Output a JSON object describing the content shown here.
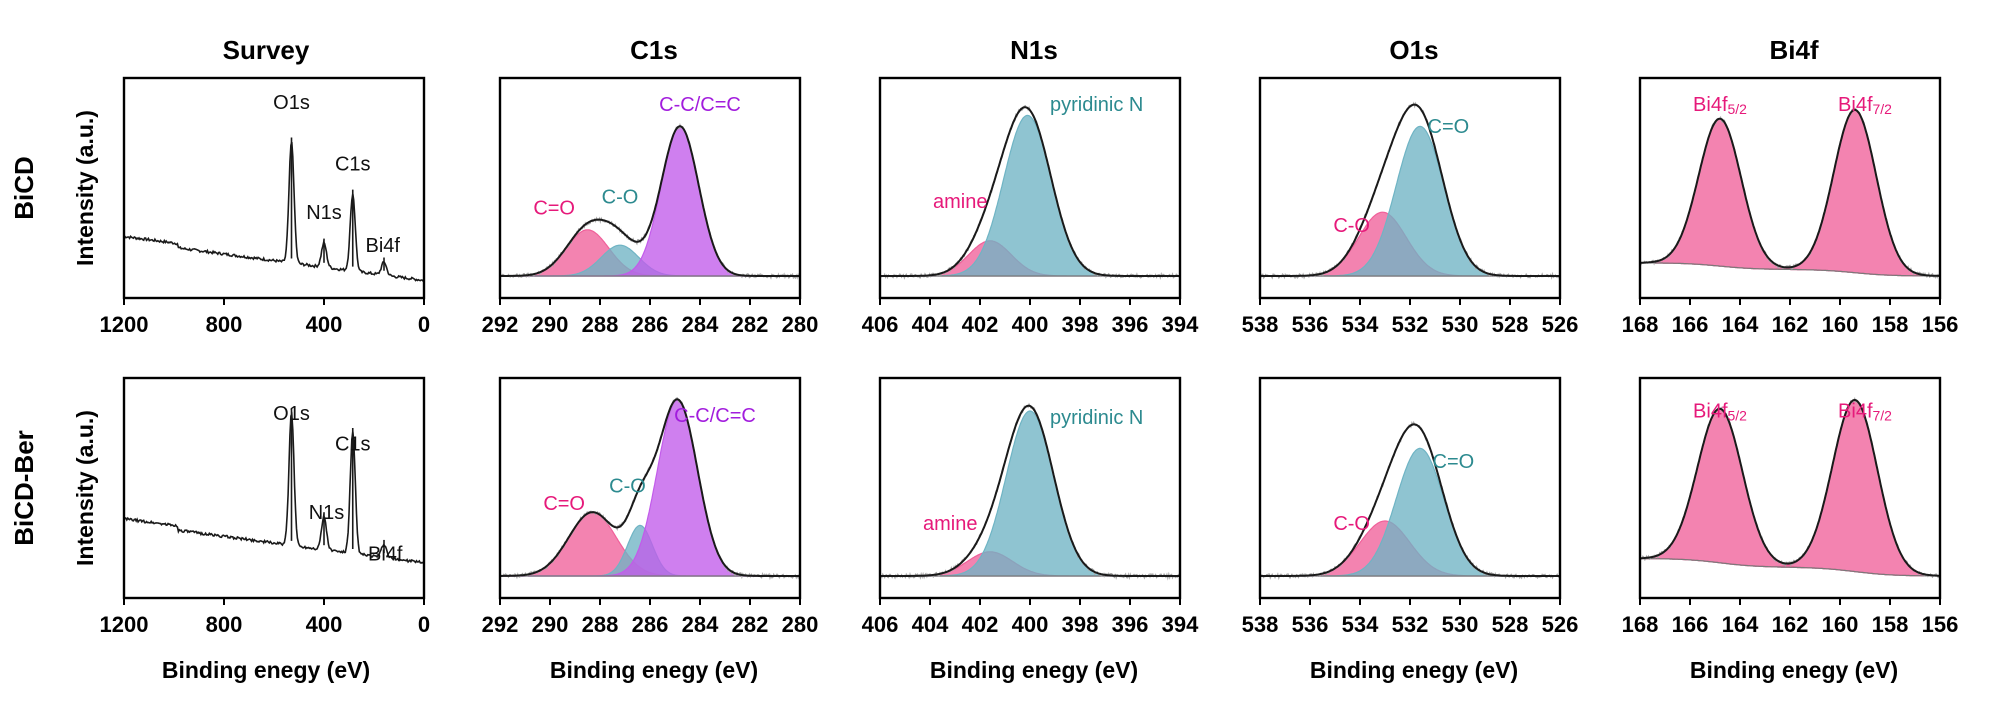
{
  "chart_data": {
    "type": "line",
    "columns": [
      {
        "title": "Survey",
        "xlim": [
          1200,
          0
        ],
        "ticks": [
          1200,
          800,
          400,
          0
        ]
      },
      {
        "title": "C1s",
        "xlim": [
          292,
          280
        ],
        "ticks": [
          292,
          290,
          288,
          286,
          284,
          282,
          280
        ]
      },
      {
        "title": "N1s",
        "xlim": [
          406,
          394
        ],
        "ticks": [
          406,
          404,
          402,
          400,
          398,
          396,
          394
        ]
      },
      {
        "title": "O1s",
        "xlim": [
          538,
          526
        ],
        "ticks": [
          538,
          536,
          534,
          532,
          530,
          528,
          526
        ]
      },
      {
        "title": "Bi4f",
        "xlim": [
          168,
          156
        ],
        "ticks": [
          168,
          166,
          164,
          162,
          160,
          158,
          156
        ]
      }
    ],
    "rows": [
      {
        "label": "BiCD",
        "ylabel": "Intensity (a.u.)"
      },
      {
        "label": "BiCD-Ber",
        "ylabel": "Intensity (a.u.)"
      }
    ],
    "xlabel": "Binding enegy (eV)",
    "colors": {
      "envelope": "#1a1a1a",
      "raw": "#a8a8a8",
      "pink": "#f0609a",
      "teal": "#6fb4c4",
      "violet": "#c25bea",
      "pink_text": "#e6197a",
      "teal_text": "#2c8a8f",
      "violet_text": "#a21ddd"
    },
    "panels": [
      {
        "row": 0,
        "col": 0,
        "kind": "survey",
        "baseline": 0.1,
        "step_at": 985,
        "step_amp": 0.02,
        "peaks": [
          {
            "center": 530,
            "height": 0.55,
            "width": 2.5
          },
          {
            "center": 400,
            "height": 0.11,
            "width": 2.5
          },
          {
            "center": 285,
            "height": 0.35,
            "width": 2.5
          },
          {
            "center": 160,
            "height": 0.06,
            "width": 2.5
          }
        ],
        "labels": [
          {
            "text": "O1s",
            "x": 530,
            "y": 0.86,
            "color": "dark",
            "anchor": "middle"
          },
          {
            "text": "N1s",
            "x": 400,
            "y": 0.36,
            "color": "dark",
            "anchor": "middle"
          },
          {
            "text": "C1s",
            "x": 285,
            "y": 0.58,
            "color": "dark",
            "anchor": "middle"
          },
          {
            "text": "Bi4f",
            "x": 165,
            "y": 0.21,
            "color": "dark",
            "anchor": "middle"
          }
        ]
      },
      {
        "row": 0,
        "col": 1,
        "kind": "xps",
        "baseline": 0.1,
        "components": [
          {
            "center": 288.5,
            "height": 0.21,
            "width": 0.85,
            "color": "pink"
          },
          {
            "center": 287.2,
            "height": 0.14,
            "width": 0.75,
            "color": "teal"
          },
          {
            "center": 284.8,
            "height": 0.68,
            "width": 0.75,
            "color": "violet"
          }
        ],
        "labels": [
          {
            "text": "C=O",
            "x": 289.0,
            "y": 0.38,
            "color": "pink",
            "anchor": "end"
          },
          {
            "text": "C-O",
            "x": 287.2,
            "y": 0.43,
            "color": "teal",
            "anchor": "middle"
          },
          {
            "text": "C-C/C=C",
            "x": 284.0,
            "y": 0.85,
            "color": "violet",
            "anchor": "middle"
          }
        ]
      },
      {
        "row": 0,
        "col": 2,
        "kind": "xps",
        "baseline": 0.1,
        "components": [
          {
            "center": 401.6,
            "height": 0.16,
            "width": 0.85,
            "color": "pink"
          },
          {
            "center": 400.1,
            "height": 0.73,
            "width": 0.95,
            "color": "teal"
          }
        ],
        "labels": [
          {
            "text": "amine",
            "x": 401.7,
            "y": 0.41,
            "color": "pink",
            "anchor": "end"
          },
          {
            "text": "pyridinic N",
            "x": 399.2,
            "y": 0.85,
            "color": "teal",
            "anchor": "start"
          }
        ]
      },
      {
        "row": 0,
        "col": 3,
        "kind": "xps",
        "baseline": 0.1,
        "components": [
          {
            "center": 533.1,
            "height": 0.29,
            "width": 0.95,
            "color": "pink"
          },
          {
            "center": 531.6,
            "height": 0.68,
            "width": 0.95,
            "color": "teal"
          }
        ],
        "labels": [
          {
            "text": "C-O",
            "x": 533.6,
            "y": 0.3,
            "color": "pink",
            "anchor": "end"
          },
          {
            "text": "C=O",
            "x": 531.3,
            "y": 0.75,
            "color": "teal",
            "anchor": "start"
          }
        ]
      },
      {
        "row": 0,
        "col": 4,
        "kind": "xps",
        "baseline": 0.1,
        "bg_step": 0.03,
        "components": [
          {
            "center": 164.8,
            "height": 0.67,
            "width": 0.85,
            "color": "pink"
          },
          {
            "center": 159.4,
            "height": 0.74,
            "width": 0.85,
            "color": "pink"
          }
        ],
        "labels": [
          {
            "text": "Bi4f5/2",
            "x": 164.8,
            "y": 0.85,
            "color": "pink",
            "anchor": "middle"
          },
          {
            "text": "Bi4f7/2",
            "x": 159.0,
            "y": 0.85,
            "color": "pink",
            "anchor": "middle"
          }
        ]
      },
      {
        "row": 1,
        "col": 0,
        "kind": "survey",
        "baseline": 0.18,
        "step_at": 985,
        "step_amp": 0.02,
        "peaks": [
          {
            "center": 530,
            "height": 0.6,
            "width": 2.5
          },
          {
            "center": 400,
            "height": 0.15,
            "width": 2.5
          },
          {
            "center": 285,
            "height": 0.55,
            "width": 2.5
          },
          {
            "center": 160,
            "height": 0.06,
            "width": 2.5
          }
        ],
        "labels": [
          {
            "text": "O1s",
            "x": 530,
            "y": 0.81,
            "color": "dark",
            "anchor": "middle"
          },
          {
            "text": "N1s",
            "x": 390,
            "y": 0.36,
            "color": "dark",
            "anchor": "middle"
          },
          {
            "text": "C1s",
            "x": 285,
            "y": 0.67,
            "color": "dark",
            "anchor": "middle"
          },
          {
            "text": "Bi4f",
            "x": 155,
            "y": 0.17,
            "color": "dark",
            "anchor": "middle"
          }
        ]
      },
      {
        "row": 1,
        "col": 1,
        "kind": "xps",
        "baseline": 0.1,
        "components": [
          {
            "center": 288.3,
            "height": 0.29,
            "width": 0.95,
            "color": "pink"
          },
          {
            "center": 286.4,
            "height": 0.23,
            "width": 0.5,
            "color": "teal"
          },
          {
            "center": 284.9,
            "height": 0.8,
            "width": 0.8,
            "color": "violet"
          }
        ],
        "labels": [
          {
            "text": "C=O",
            "x": 288.6,
            "y": 0.4,
            "color": "pink",
            "anchor": "end"
          },
          {
            "text": "C-O",
            "x": 286.9,
            "y": 0.48,
            "color": "teal",
            "anchor": "middle"
          },
          {
            "text": "C-C/C=C",
            "x": 283.4,
            "y": 0.8,
            "color": "violet",
            "anchor": "middle"
          }
        ]
      },
      {
        "row": 1,
        "col": 2,
        "kind": "xps",
        "baseline": 0.1,
        "components": [
          {
            "center": 401.6,
            "height": 0.11,
            "width": 0.9,
            "color": "pink"
          },
          {
            "center": 400.0,
            "height": 0.75,
            "width": 0.95,
            "color": "teal"
          }
        ],
        "labels": [
          {
            "text": "amine",
            "x": 402.1,
            "y": 0.31,
            "color": "pink",
            "anchor": "end"
          },
          {
            "text": "pyridinic N",
            "x": 399.2,
            "y": 0.79,
            "color": "teal",
            "anchor": "start"
          }
        ]
      },
      {
        "row": 1,
        "col": 3,
        "kind": "xps",
        "baseline": 0.1,
        "components": [
          {
            "center": 533.0,
            "height": 0.25,
            "width": 1.0,
            "color": "pink"
          },
          {
            "center": 531.6,
            "height": 0.58,
            "width": 0.95,
            "color": "teal"
          }
        ],
        "labels": [
          {
            "text": "C-O",
            "x": 533.6,
            "y": 0.31,
            "color": "pink",
            "anchor": "end"
          },
          {
            "text": "C=O",
            "x": 531.1,
            "y": 0.59,
            "color": "teal",
            "anchor": "start"
          }
        ]
      },
      {
        "row": 1,
        "col": 4,
        "kind": "xps",
        "baseline": 0.1,
        "bg_step": 0.04,
        "components": [
          {
            "center": 164.8,
            "height": 0.7,
            "width": 0.9,
            "color": "pink"
          },
          {
            "center": 159.4,
            "height": 0.78,
            "width": 0.9,
            "color": "pink"
          }
        ],
        "labels": [
          {
            "text": "Bi4f5/2",
            "x": 164.8,
            "y": 0.82,
            "color": "pink",
            "anchor": "middle"
          },
          {
            "text": "Bi4f7/2",
            "x": 159.0,
            "y": 0.82,
            "color": "pink",
            "anchor": "middle"
          }
        ]
      }
    ]
  }
}
